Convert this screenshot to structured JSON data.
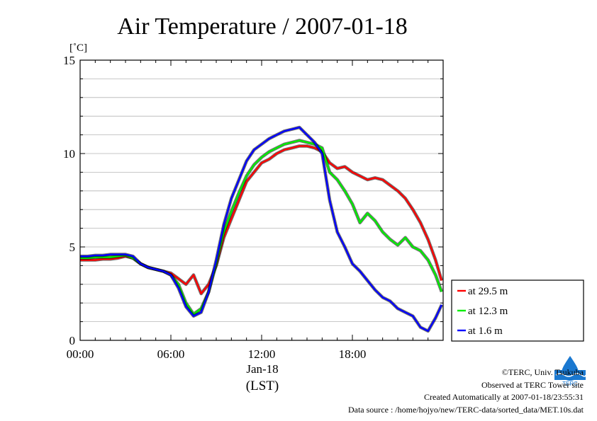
{
  "chart_data": {
    "type": "line",
    "title": "Air Temperature / 2007-01-18",
    "ylabel": "[˚C]",
    "xlabel": "(LST)",
    "date_label": "Jan-18",
    "xlim": [
      0,
      24
    ],
    "ylim": [
      0,
      15
    ],
    "x_ticks": [
      0,
      6,
      12,
      18
    ],
    "x_tick_labels": [
      "00:00",
      "06:00",
      "12:00",
      "18:00"
    ],
    "y_ticks": [
      0,
      5,
      10,
      15
    ],
    "y_tick_labels": [
      "0",
      "5",
      "10",
      "15"
    ],
    "grid": "horizontal",
    "legend_position": "right",
    "x": [
      0,
      0.5,
      1,
      1.5,
      2,
      2.5,
      3,
      3.5,
      4,
      4.5,
      5,
      5.5,
      6,
      6.5,
      7,
      7.5,
      8,
      8.5,
      9,
      9.5,
      10,
      10.5,
      11,
      11.5,
      12,
      12.5,
      13,
      13.5,
      14,
      14.5,
      15,
      15.5,
      16,
      16.5,
      17,
      17.5,
      18,
      18.5,
      19,
      19.5,
      20,
      20.5,
      21,
      21.5,
      22,
      22.5,
      23,
      23.5,
      23.9
    ],
    "series": [
      {
        "name": "at 29.5 m",
        "color": "#ff0000",
        "values": [
          4.3,
          4.3,
          4.3,
          4.35,
          4.35,
          4.4,
          4.5,
          4.4,
          4.1,
          3.9,
          3.8,
          3.7,
          3.6,
          3.3,
          3.0,
          3.5,
          2.5,
          3.0,
          4.0,
          5.5,
          6.5,
          7.5,
          8.5,
          9.0,
          9.5,
          9.7,
          10.0,
          10.2,
          10.3,
          10.4,
          10.4,
          10.3,
          10.1,
          9.5,
          9.2,
          9.3,
          9.0,
          8.8,
          8.6,
          8.7,
          8.6,
          8.3,
          8.0,
          7.6,
          7.0,
          6.3,
          5.4,
          4.3,
          3.2
        ]
      },
      {
        "name": "at 12.3 m",
        "color": "#00ee00",
        "values": [
          4.4,
          4.4,
          4.45,
          4.45,
          4.45,
          4.5,
          4.55,
          4.4,
          4.1,
          3.9,
          3.8,
          3.7,
          3.5,
          3.0,
          2.0,
          1.4,
          1.7,
          2.6,
          4.1,
          5.8,
          6.9,
          7.9,
          8.8,
          9.4,
          9.8,
          10.1,
          10.3,
          10.5,
          10.6,
          10.7,
          10.6,
          10.5,
          10.3,
          9.0,
          8.6,
          8.0,
          7.3,
          6.3,
          6.8,
          6.4,
          5.8,
          5.4,
          5.1,
          5.5,
          5.0,
          4.8,
          4.3,
          3.5,
          2.6
        ]
      },
      {
        "name": "at 1.6 m",
        "color": "#0000ff",
        "values": [
          4.5,
          4.5,
          4.55,
          4.55,
          4.6,
          4.6,
          4.6,
          4.5,
          4.1,
          3.9,
          3.8,
          3.7,
          3.5,
          2.8,
          1.8,
          1.3,
          1.5,
          2.6,
          4.3,
          6.2,
          7.6,
          8.6,
          9.6,
          10.2,
          10.5,
          10.8,
          11.0,
          11.2,
          11.3,
          11.4,
          11.0,
          10.6,
          10.0,
          7.5,
          5.8,
          5.0,
          4.1,
          3.7,
          3.2,
          2.7,
          2.3,
          2.1,
          1.7,
          1.5,
          1.3,
          0.7,
          0.5,
          1.2,
          1.9
        ]
      }
    ]
  },
  "credits": {
    "line1": "©TERC, Univ. Tsukuba",
    "line2": "Observed at TERC Tower site",
    "line3": "Created Automatically at 2007-01-18/23:55:31",
    "line4": "Data source : /home/hojyo/new/TERC-data/sorted_data/MET.10s.dat"
  },
  "logo": {
    "text": "TERC",
    "color": "#1a78d0"
  }
}
